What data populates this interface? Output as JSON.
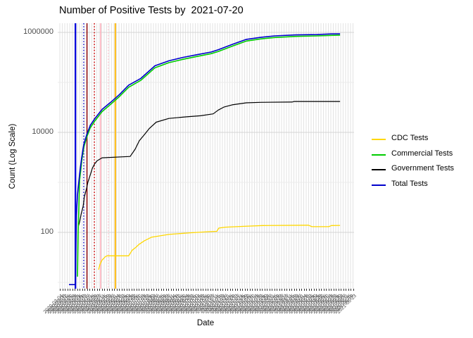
{
  "title": "Number of Positive Tests by  2021-07-20",
  "axes": {
    "x_title": "Date",
    "y_title": "Count (Log Scale)"
  },
  "legend": {
    "items": [
      {
        "label": "CDC Tests",
        "color": "#FFD700"
      },
      {
        "label": "Commercial Tests",
        "color": "#00CC00"
      },
      {
        "label": "Government Tests",
        "color": "#000000"
      },
      {
        "label": "Total Tests",
        "color": "#0000CC"
      }
    ]
  },
  "chart_data": {
    "type": "line",
    "title": "Number of Positive Tests by  2021-07-20",
    "xlabel": "Date",
    "ylabel": "Count (Log Scale)",
    "y_scale": "log10",
    "ylim": [
      8,
      1500000
    ],
    "y_major_breaks": [
      1000000,
      10000,
      100
    ],
    "y_tick_labels": [
      "1000000",
      "10000",
      "100"
    ],
    "y_minor_breaks": [
      100000,
      1000,
      10
    ],
    "grid": true,
    "legend_position": "right",
    "x_axis": {
      "note": "≈120 densely overlapping rotated date tick labels, illegible in source",
      "estimated_first_date": "2020-03-04",
      "estimated_step_days": 4,
      "tick_count": 120
    },
    "vlines": [
      {
        "x": 0.06,
        "color": "#0000DD",
        "style": "solid",
        "width": 2.2
      },
      {
        "x": 0.088,
        "color": "#2020CC",
        "style": "dotted",
        "width": 1.5
      },
      {
        "x": 0.099,
        "color": "#8B0000",
        "style": "solid",
        "width": 1.5
      },
      {
        "x": 0.124,
        "color": "#CC0000",
        "style": "dotted",
        "width": 1.5
      },
      {
        "x": 0.145,
        "color": "#FFAEB9",
        "style": "solid",
        "width": 1.5
      },
      {
        "x": 0.171,
        "color": "#FFCCD5",
        "style": "dotted",
        "width": 1.5
      },
      {
        "x": 0.195,
        "color": "#FFC125",
        "style": "solid",
        "width": 2.2
      }
    ],
    "series": [
      {
        "name": "CDC Tests",
        "color": "#FFD700",
        "width": 1.3,
        "points": [
          [
            0.138,
            18
          ],
          [
            0.143,
            23
          ],
          [
            0.15,
            28
          ],
          [
            0.162,
            33
          ],
          [
            0.167,
            34
          ],
          [
            0.24,
            34
          ],
          [
            0.252,
            44
          ],
          [
            0.264,
            50
          ],
          [
            0.274,
            57
          ],
          [
            0.293,
            68
          ],
          [
            0.317,
            80
          ],
          [
            0.376,
            91
          ],
          [
            0.448,
            98
          ],
          [
            0.507,
            103
          ],
          [
            0.538,
            105
          ],
          [
            0.545,
            122
          ],
          [
            0.567,
            127
          ],
          [
            0.631,
            132
          ],
          [
            0.693,
            137
          ],
          [
            0.848,
            139
          ],
          [
            0.86,
            130
          ],
          [
            0.917,
            130
          ],
          [
            0.926,
            137
          ],
          [
            0.955,
            138
          ]
        ]
      },
      {
        "name": "Government Tests",
        "color": "#000000",
        "width": 1.2,
        "points": [
          [
            0.069,
            130
          ],
          [
            0.074,
            160
          ],
          [
            0.079,
            230
          ],
          [
            0.086,
            330
          ],
          [
            0.09,
            510
          ],
          [
            0.098,
            780
          ],
          [
            0.102,
            1000
          ],
          [
            0.11,
            1400
          ],
          [
            0.117,
            1900
          ],
          [
            0.124,
            2300
          ],
          [
            0.133,
            2700
          ],
          [
            0.15,
            3100
          ],
          [
            0.245,
            3300
          ],
          [
            0.262,
            4600
          ],
          [
            0.276,
            6800
          ],
          [
            0.293,
            9000
          ],
          [
            0.31,
            12000
          ],
          [
            0.333,
            16000
          ],
          [
            0.376,
            19000
          ],
          [
            0.436,
            20500
          ],
          [
            0.483,
            21500
          ],
          [
            0.526,
            23500
          ],
          [
            0.543,
            28000
          ],
          [
            0.562,
            32000
          ],
          [
            0.59,
            35500
          ],
          [
            0.638,
            39000
          ],
          [
            0.686,
            40000
          ],
          [
            0.793,
            40500
          ],
          [
            0.8,
            41500
          ],
          [
            0.955,
            41500
          ]
        ]
      },
      {
        "name": "Commercial Tests",
        "color": "#00CC00",
        "width": 1.6,
        "points": [
          [
            0.067,
            13
          ],
          [
            0.069,
            100
          ],
          [
            0.074,
            1100
          ],
          [
            0.081,
            2600
          ],
          [
            0.088,
            5000
          ],
          [
            0.098,
            8000
          ],
          [
            0.11,
            12300
          ],
          [
            0.126,
            17000
          ],
          [
            0.15,
            26000
          ],
          [
            0.179,
            36500
          ],
          [
            0.21,
            53000
          ],
          [
            0.24,
            80000
          ],
          [
            0.281,
            110000
          ],
          [
            0.329,
            196000
          ],
          [
            0.376,
            248000
          ],
          [
            0.424,
            290000
          ],
          [
            0.471,
            330000
          ],
          [
            0.519,
            375000
          ],
          [
            0.543,
            415000
          ],
          [
            0.59,
            530000
          ],
          [
            0.638,
            670000
          ],
          [
            0.686,
            740000
          ],
          [
            0.733,
            790000
          ],
          [
            0.805,
            830000
          ],
          [
            0.876,
            850000
          ],
          [
            0.924,
            870000
          ],
          [
            0.955,
            880000
          ]
        ]
      },
      {
        "name": "Total Tests",
        "color": "#0000CC",
        "width": 1.6,
        "points": [
          [
            0.038,
            9
          ],
          [
            0.06,
            9
          ],
          [
            0.063,
            215
          ],
          [
            0.067,
            560
          ],
          [
            0.074,
            1470
          ],
          [
            0.081,
            3100
          ],
          [
            0.088,
            5750
          ],
          [
            0.098,
            9000
          ],
          [
            0.11,
            13800
          ],
          [
            0.126,
            19000
          ],
          [
            0.15,
            28800
          ],
          [
            0.179,
            40000
          ],
          [
            0.21,
            58000
          ],
          [
            0.24,
            88000
          ],
          [
            0.281,
            120000
          ],
          [
            0.329,
            215000
          ],
          [
            0.376,
            270000
          ],
          [
            0.424,
            316000
          ],
          [
            0.471,
            358000
          ],
          [
            0.519,
            405000
          ],
          [
            0.543,
            450000
          ],
          [
            0.59,
            575000
          ],
          [
            0.638,
            725000
          ],
          [
            0.686,
            795000
          ],
          [
            0.733,
            850000
          ],
          [
            0.805,
            890000
          ],
          [
            0.876,
            905000
          ],
          [
            0.924,
            930000
          ],
          [
            0.955,
            935000
          ]
        ]
      }
    ]
  },
  "style": {
    "grid_v_color": "#E3E3E3",
    "grid_major_color": "#D4D4D4",
    "grid_minor_color": "#EBEBEB",
    "tick_color": "#333333"
  }
}
